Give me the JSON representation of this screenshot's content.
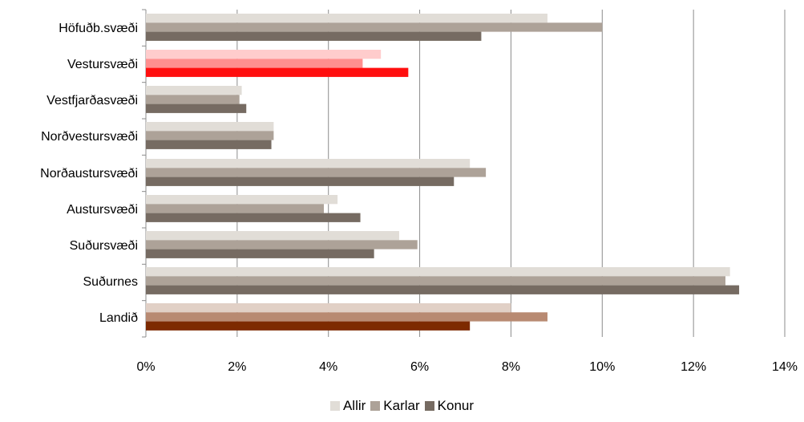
{
  "chart_data": {
    "type": "bar",
    "orientation": "horizontal",
    "categories": [
      "Höfuðb.svæði",
      "Vestursvæði",
      "Vestfjarðasvæði",
      "Norðvestursvæði",
      "Norðaustursvæði",
      "Austursvæði",
      "Suðursvæði",
      "Suðurnes",
      "Landið"
    ],
    "series": [
      {
        "name": "Allir",
        "color": "#e1ddd7",
        "values": [
          8.8,
          5.15,
          2.1,
          2.8,
          7.1,
          4.2,
          5.55,
          12.8,
          8.0
        ]
      },
      {
        "name": "Karlar",
        "color": "#ada298",
        "values": [
          10.0,
          4.75,
          2.05,
          2.8,
          7.45,
          3.9,
          5.95,
          12.7,
          8.8
        ]
      },
      {
        "name": "Konur",
        "color": "#766b62",
        "values": [
          7.35,
          5.75,
          2.2,
          2.75,
          6.75,
          4.7,
          5.0,
          13.0,
          7.1
        ]
      }
    ],
    "highlight_colors": {
      "Vestursvæði": [
        "#ffcccc",
        "#ff8f8f",
        "#ff0f0f"
      ],
      "Landið": [
        "#e1d0c6",
        "#b88a72",
        "#7d2a00"
      ]
    },
    "xlim": [
      0,
      14
    ],
    "x_ticks": [
      "0%",
      "2%",
      "4%",
      "6%",
      "8%",
      "10%",
      "12%",
      "14%"
    ],
    "x_tick_values": [
      0,
      2,
      4,
      6,
      8,
      10,
      12,
      14
    ],
    "grid": true,
    "legend_position": "bottom"
  }
}
